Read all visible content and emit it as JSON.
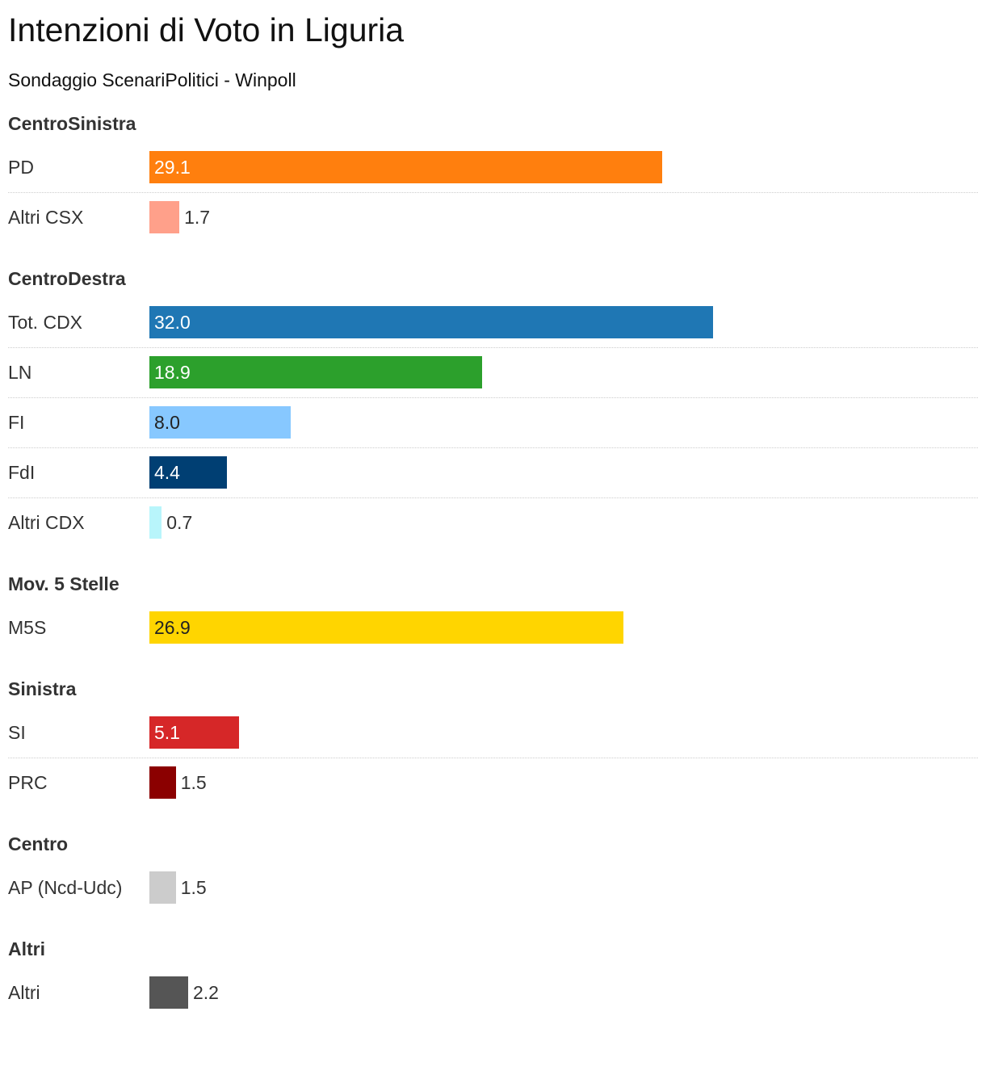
{
  "title": "Intenzioni di Voto in Liguria",
  "subtitle": "Sondaggio ScenariPolitici - Winpoll",
  "chart_data": {
    "type": "bar",
    "orientation": "horizontal",
    "xlim": [
      0,
      32
    ],
    "groups": [
      {
        "name": "CentroSinistra",
        "items": [
          {
            "label": "PD",
            "value": 29.1,
            "value_label": "29.1",
            "color": "#ff7f0e",
            "text": "light"
          },
          {
            "label": "Altri CSX",
            "value": 1.7,
            "value_label": "1.7",
            "color": "#ffa08a",
            "text": "dark"
          }
        ]
      },
      {
        "name": "CentroDestra",
        "items": [
          {
            "label": "Tot. CDX",
            "value": 32.0,
            "value_label": "32.0",
            "color": "#1f77b4",
            "text": "light"
          },
          {
            "label": "LN",
            "value": 18.9,
            "value_label": "18.9",
            "color": "#2ca02c",
            "text": "light"
          },
          {
            "label": "FI",
            "value": 8.0,
            "value_label": "8.0",
            "color": "#87c8ff",
            "text": "dark"
          },
          {
            "label": "FdI",
            "value": 4.4,
            "value_label": "4.4",
            "color": "#003f73",
            "text": "light"
          },
          {
            "label": "Altri CDX",
            "value": 0.7,
            "value_label": "0.7",
            "color": "#b8f5fb",
            "text": "dark"
          }
        ]
      },
      {
        "name": "Mov. 5 Stelle",
        "items": [
          {
            "label": "M5S",
            "value": 26.9,
            "value_label": "26.9",
            "color": "#ffd500",
            "text": "dark"
          }
        ]
      },
      {
        "name": "Sinistra",
        "items": [
          {
            "label": "SI",
            "value": 5.1,
            "value_label": "5.1",
            "color": "#d62728",
            "text": "light"
          },
          {
            "label": "PRC",
            "value": 1.5,
            "value_label": "1.5",
            "color": "#8b0000",
            "text": "dark"
          }
        ]
      },
      {
        "name": "Centro",
        "items": [
          {
            "label": "AP (Ncd-Udc)",
            "value": 1.5,
            "value_label": "1.5",
            "color": "#cccccc",
            "text": "dark"
          }
        ]
      },
      {
        "name": "Altri",
        "items": [
          {
            "label": "Altri",
            "value": 2.2,
            "value_label": "2.2",
            "color": "#555555",
            "text": "light"
          }
        ]
      }
    ]
  }
}
